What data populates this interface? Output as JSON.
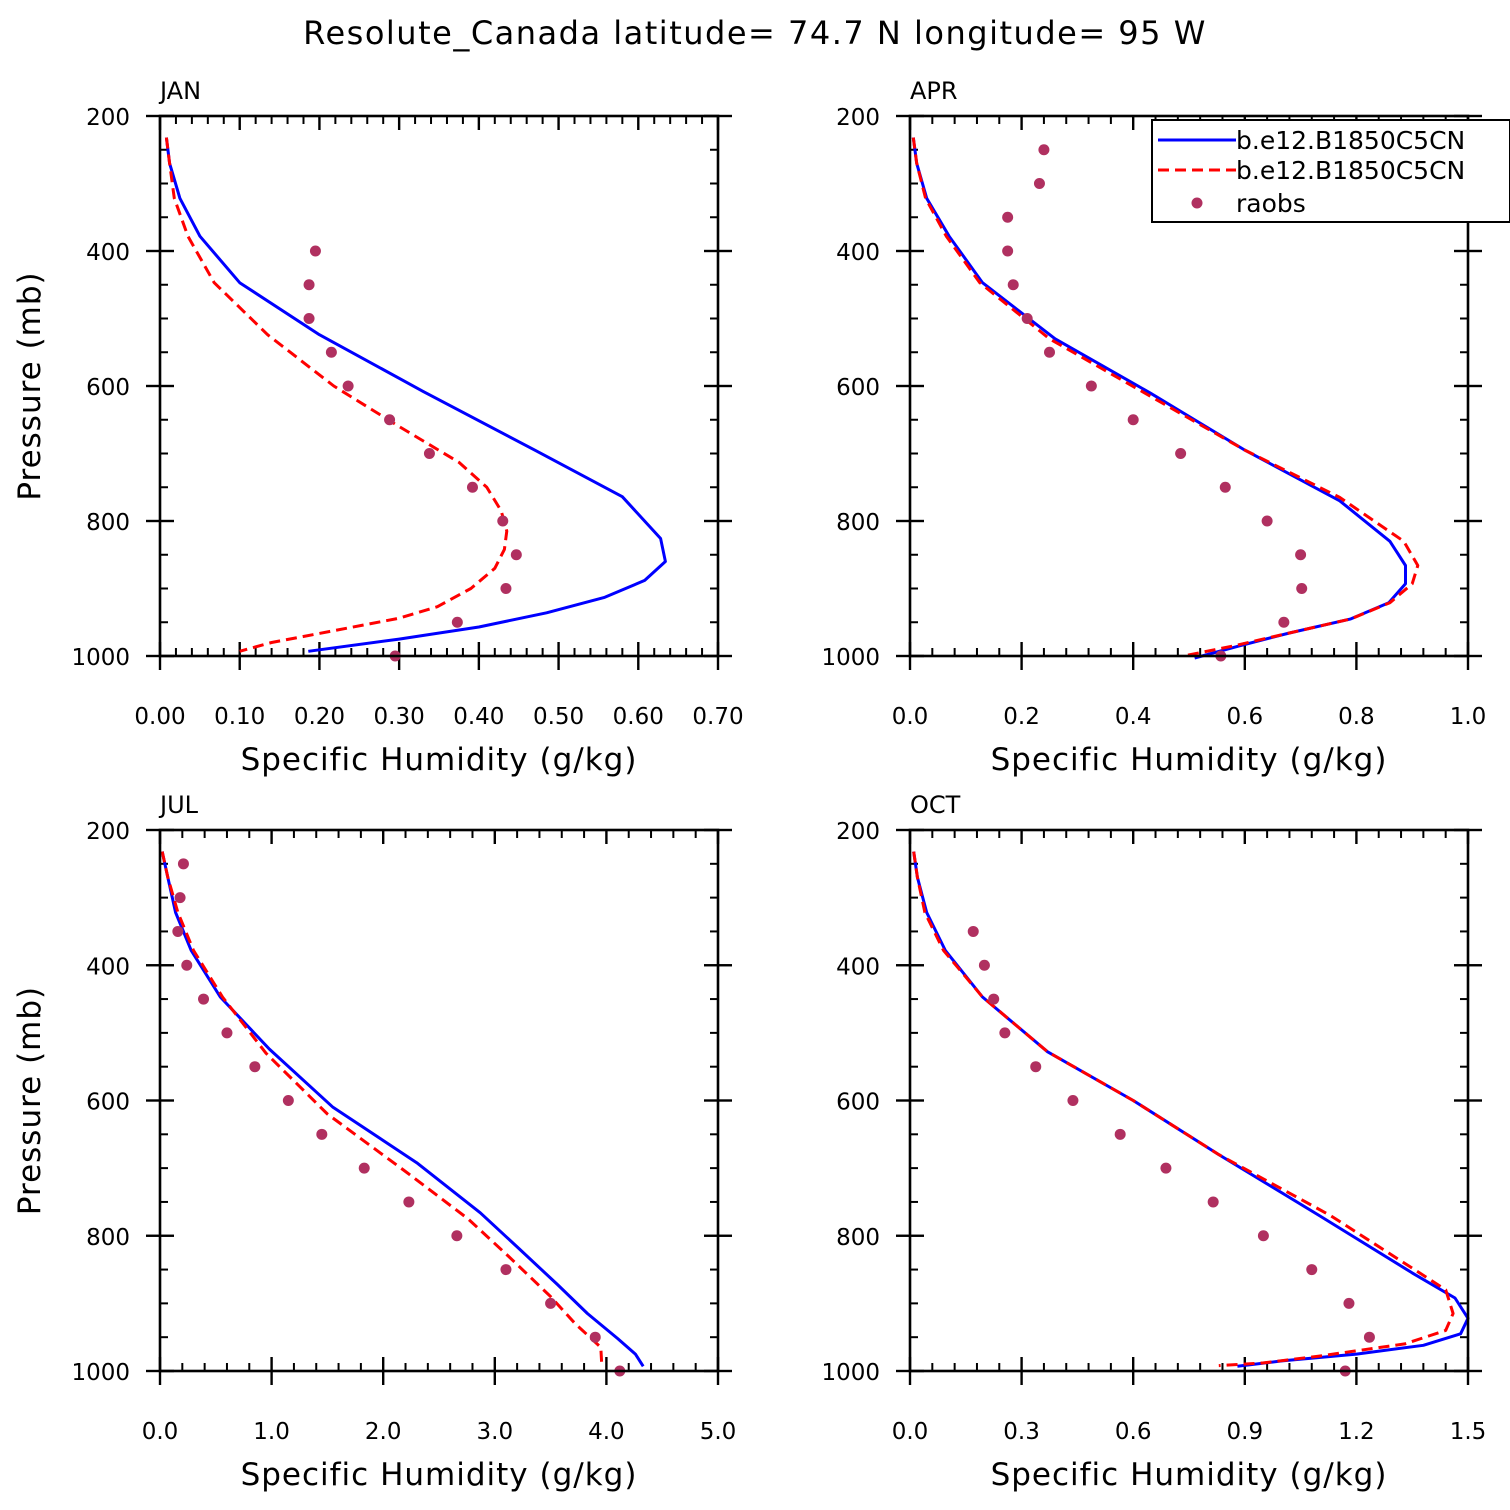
{
  "figure": {
    "title": "Resolute_Canada  latitude= 74.7 N longitude= 95 W"
  },
  "legend": {
    "entries": [
      "b.e12.B1850C5CN",
      "b.e12.B1850C5CN",
      "raobs"
    ]
  },
  "colors": {
    "model_1": "#0000ff",
    "model_2": "#ff0000",
    "raobs": "#b03060",
    "axes": "#000000"
  },
  "chart_data": [
    {
      "type": "line",
      "panel_label": "JAN",
      "xlabel": "Specific Humidity (g/kg)",
      "ylabel": "Pressure (mb)",
      "xlim": [
        0,
        0.7
      ],
      "ylim": [
        200,
        1000
      ],
      "y_inverted": true,
      "xticks": [
        0.0,
        0.1,
        0.2,
        0.3,
        0.4,
        0.5,
        0.6,
        0.7
      ],
      "xtick_labels": [
        "0.00",
        "0.10",
        "0.20",
        "0.30",
        "0.40",
        "0.50",
        "0.60",
        "0.70"
      ],
      "yticks": [
        200,
        400,
        600,
        800,
        1000
      ],
      "ytick_labels": [
        "200",
        "400",
        "600",
        "800",
        "1000"
      ],
      "series": [
        {
          "color_key": "model_1",
          "style": "solid",
          "points": [
            [
              0.008,
              232
            ],
            [
              0.012,
              270
            ],
            [
              0.025,
              322
            ],
            [
              0.05,
              378
            ],
            [
              0.1,
              447
            ],
            [
              0.2,
              524
            ],
            [
              0.33,
              608
            ],
            [
              0.47,
              695
            ],
            [
              0.58,
              764
            ],
            [
              0.628,
              826
            ],
            [
              0.634,
              860
            ],
            [
              0.608,
              888
            ],
            [
              0.558,
              913
            ],
            [
              0.485,
              936
            ],
            [
              0.4,
              957
            ],
            [
              0.3,
              975
            ],
            [
              0.186,
              993
            ]
          ]
        },
        {
          "color_key": "model_2",
          "style": "dashed",
          "points": [
            [
              0.008,
              232
            ],
            [
              0.012,
              270
            ],
            [
              0.018,
              322
            ],
            [
              0.035,
              378
            ],
            [
              0.068,
              447
            ],
            [
              0.135,
              524
            ],
            [
              0.218,
              600
            ],
            [
              0.3,
              660
            ],
            [
              0.375,
              713
            ],
            [
              0.41,
              750
            ],
            [
              0.428,
              785
            ],
            [
              0.435,
              815
            ],
            [
              0.432,
              842
            ],
            [
              0.42,
              870
            ],
            [
              0.39,
              900
            ],
            [
              0.348,
              927
            ],
            [
              0.3,
              944
            ],
            [
              0.22,
              962
            ],
            [
              0.14,
              980
            ],
            [
              0.1,
              993
            ]
          ]
        },
        {
          "color_key": "raobs",
          "style": "markers",
          "points": [
            [
              0.195,
              400
            ],
            [
              0.187,
              450
            ],
            [
              0.187,
              500
            ],
            [
              0.215,
              550
            ],
            [
              0.236,
              600
            ],
            [
              0.288,
              650
            ],
            [
              0.338,
              700
            ],
            [
              0.392,
              750
            ],
            [
              0.43,
              800
            ],
            [
              0.447,
              850
            ],
            [
              0.434,
              900
            ],
            [
              0.373,
              950
            ],
            [
              0.295,
              1000
            ]
          ]
        }
      ]
    },
    {
      "type": "line",
      "panel_label": "APR",
      "xlabel": "Specific Humidity (g/kg)",
      "ylabel": "",
      "xlim": [
        0,
        1.0
      ],
      "ylim": [
        200,
        1000
      ],
      "y_inverted": true,
      "xticks": [
        0.0,
        0.2,
        0.4,
        0.6,
        0.8,
        1.0
      ],
      "xtick_labels": [
        "0.0",
        "0.2",
        "0.4",
        "0.6",
        "0.8",
        "1.0"
      ],
      "yticks": [
        200,
        400,
        600,
        800,
        1000
      ],
      "ytick_labels": [
        "200",
        "400",
        "600",
        "800",
        "1000"
      ],
      "series": [
        {
          "color_key": "model_1",
          "style": "solid",
          "points": [
            [
              0.006,
              232
            ],
            [
              0.012,
              270
            ],
            [
              0.03,
              322
            ],
            [
              0.07,
              378
            ],
            [
              0.13,
              447
            ],
            [
              0.26,
              530
            ],
            [
              0.43,
              610
            ],
            [
              0.6,
              695
            ],
            [
              0.77,
              770
            ],
            [
              0.86,
              830
            ],
            [
              0.888,
              866
            ],
            [
              0.888,
              893
            ],
            [
              0.858,
              921
            ],
            [
              0.79,
              945
            ],
            [
              0.68,
              966
            ],
            [
              0.59,
              985
            ],
            [
              0.51,
              1003
            ]
          ]
        },
        {
          "color_key": "model_2",
          "style": "dashed",
          "points": [
            [
              0.006,
              232
            ],
            [
              0.012,
              270
            ],
            [
              0.028,
              322
            ],
            [
              0.065,
              378
            ],
            [
              0.125,
              447
            ],
            [
              0.25,
              530
            ],
            [
              0.42,
              610
            ],
            [
              0.6,
              695
            ],
            [
              0.77,
              765
            ],
            [
              0.885,
              830
            ],
            [
              0.91,
              866
            ],
            [
              0.9,
              893
            ],
            [
              0.86,
              921
            ],
            [
              0.79,
              945
            ],
            [
              0.68,
              966
            ],
            [
              0.58,
              985
            ],
            [
              0.49,
              1000
            ]
          ]
        },
        {
          "color_key": "raobs",
          "style": "markers",
          "points": [
            [
              0.24,
              250
            ],
            [
              0.232,
              300
            ],
            [
              0.175,
              350
            ],
            [
              0.175,
              400
            ],
            [
              0.185,
              450
            ],
            [
              0.21,
              500
            ],
            [
              0.25,
              550
            ],
            [
              0.325,
              600
            ],
            [
              0.4,
              650
            ],
            [
              0.485,
              700
            ],
            [
              0.565,
              750
            ],
            [
              0.64,
              800
            ],
            [
              0.7,
              850
            ],
            [
              0.702,
              900
            ],
            [
              0.67,
              950
            ],
            [
              0.557,
              1000
            ]
          ]
        }
      ]
    },
    {
      "type": "line",
      "panel_label": "JUL",
      "xlabel": "Specific Humidity (g/kg)",
      "ylabel": "Pressure (mb)",
      "xlim": [
        0,
        5.0
      ],
      "ylim": [
        200,
        1000
      ],
      "y_inverted": true,
      "xticks": [
        0.0,
        1.0,
        2.0,
        3.0,
        4.0,
        5.0
      ],
      "xtick_labels": [
        "0.0",
        "1.0",
        "2.0",
        "3.0",
        "4.0",
        "5.0"
      ],
      "yticks": [
        200,
        400,
        600,
        800,
        1000
      ],
      "ytick_labels": [
        "200",
        "400",
        "600",
        "800",
        "1000"
      ],
      "series": [
        {
          "color_key": "model_1",
          "style": "solid",
          "points": [
            [
              0.02,
              232
            ],
            [
              0.07,
              270
            ],
            [
              0.14,
              322
            ],
            [
              0.28,
              378
            ],
            [
              0.54,
              447
            ],
            [
              0.98,
              524
            ],
            [
              1.55,
              610
            ],
            [
              2.3,
              692
            ],
            [
              2.87,
              766
            ],
            [
              3.21,
              818
            ],
            [
              3.56,
              872
            ],
            [
              3.83,
              915
            ],
            [
              4.1,
              952
            ],
            [
              4.26,
              975
            ],
            [
              4.33,
              993
            ]
          ]
        },
        {
          "color_key": "model_2",
          "style": "dashed",
          "points": [
            [
              0.02,
              232
            ],
            [
              0.07,
              270
            ],
            [
              0.16,
              322
            ],
            [
              0.3,
              378
            ],
            [
              0.56,
              447
            ],
            [
              0.95,
              530
            ],
            [
              1.5,
              620
            ],
            [
              2.2,
              705
            ],
            [
              2.76,
              775
            ],
            [
              3.12,
              830
            ],
            [
              3.5,
              890
            ],
            [
              3.72,
              930
            ],
            [
              3.95,
              965
            ],
            [
              3.96,
              995
            ]
          ]
        },
        {
          "color_key": "raobs",
          "style": "markers",
          "points": [
            [
              0.21,
              250
            ],
            [
              0.18,
              300
            ],
            [
              0.16,
              350
            ],
            [
              0.24,
              400
            ],
            [
              0.39,
              450
            ],
            [
              0.6,
              500
            ],
            [
              0.85,
              550
            ],
            [
              1.15,
              600
            ],
            [
              1.45,
              650
            ],
            [
              1.83,
              700
            ],
            [
              2.23,
              750
            ],
            [
              2.66,
              800
            ],
            [
              3.1,
              850
            ],
            [
              3.5,
              900
            ],
            [
              3.9,
              950
            ],
            [
              4.12,
              1000
            ]
          ]
        }
      ]
    },
    {
      "type": "line",
      "panel_label": "OCT",
      "xlabel": "Specific Humidity (g/kg)",
      "ylabel": "",
      "xlim": [
        0,
        1.5
      ],
      "ylim": [
        200,
        1000
      ],
      "y_inverted": true,
      "xticks": [
        0.0,
        0.3,
        0.6,
        0.9,
        1.2,
        1.5
      ],
      "xtick_labels": [
        "0.0",
        "0.3",
        "0.6",
        "0.9",
        "1.2",
        "1.5"
      ],
      "yticks": [
        200,
        400,
        600,
        800,
        1000
      ],
      "ytick_labels": [
        "200",
        "400",
        "600",
        "800",
        "1000"
      ],
      "series": [
        {
          "color_key": "model_1",
          "style": "solid",
          "points": [
            [
              0.01,
              232
            ],
            [
              0.02,
              270
            ],
            [
              0.045,
              322
            ],
            [
              0.095,
              378
            ],
            [
              0.195,
              447
            ],
            [
              0.37,
              528
            ],
            [
              0.6,
              600
            ],
            [
              0.83,
              680
            ],
            [
              1.1,
              770
            ],
            [
              1.35,
              855
            ],
            [
              1.465,
              892
            ],
            [
              1.5,
              922
            ],
            [
              1.48,
              945
            ],
            [
              1.38,
              962
            ],
            [
              1.2,
              975
            ],
            [
              1.0,
              985
            ],
            [
              0.88,
              993
            ]
          ]
        },
        {
          "color_key": "model_2",
          "style": "dashed",
          "points": [
            [
              0.01,
              232
            ],
            [
              0.02,
              270
            ],
            [
              0.04,
              322
            ],
            [
              0.09,
              378
            ],
            [
              0.195,
              447
            ],
            [
              0.37,
              528
            ],
            [
              0.6,
              600
            ],
            [
              0.83,
              680
            ],
            [
              1.13,
              770
            ],
            [
              1.37,
              855
            ],
            [
              1.44,
              880
            ],
            [
              1.46,
              915
            ],
            [
              1.44,
              940
            ],
            [
              1.33,
              960
            ],
            [
              1.1,
              978
            ],
            [
              0.95,
              988
            ],
            [
              0.83,
              992
            ]
          ]
        },
        {
          "color_key": "raobs",
          "style": "markers",
          "points": [
            [
              0.17,
              350
            ],
            [
              0.2,
              400
            ],
            [
              0.225,
              450
            ],
            [
              0.255,
              500
            ],
            [
              0.338,
              550
            ],
            [
              0.438,
              600
            ],
            [
              0.565,
              650
            ],
            [
              0.688,
              700
            ],
            [
              0.815,
              750
            ],
            [
              0.95,
              800
            ],
            [
              1.08,
              850
            ],
            [
              1.18,
              900
            ],
            [
              1.235,
              950
            ],
            [
              1.17,
              1000
            ]
          ]
        }
      ]
    }
  ]
}
